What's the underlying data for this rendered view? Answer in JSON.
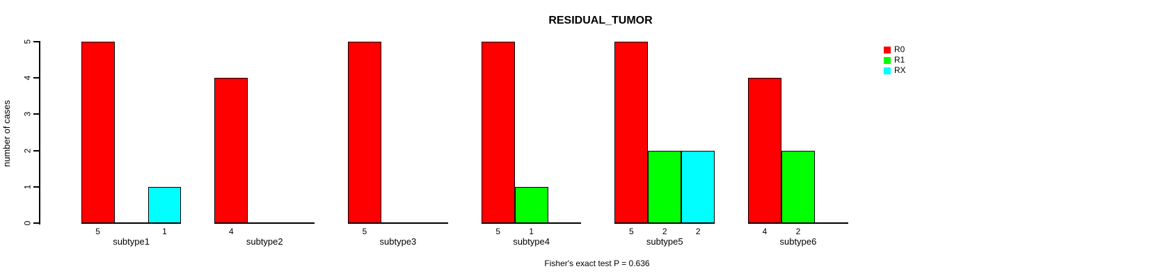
{
  "chart_data": {
    "type": "bar",
    "title": "RESIDUAL_TUMOR",
    "xlabel": "",
    "ylabel": "number of cases",
    "ylim": [
      0,
      5
    ],
    "yticks": [
      0,
      1,
      2,
      3,
      4,
      5
    ],
    "grid": false,
    "legend_position": "right",
    "categories": [
      "subtype1",
      "subtype2",
      "subtype3",
      "subtype4",
      "subtype5",
      "subtype6"
    ],
    "series": [
      {
        "name": "R0",
        "color": "#ff0000",
        "values": [
          5,
          4,
          5,
          5,
          5,
          4
        ]
      },
      {
        "name": "R1",
        "color": "#00ff00",
        "values": [
          0,
          0,
          0,
          1,
          2,
          2
        ]
      },
      {
        "name": "RX",
        "color": "#00ffff",
        "values": [
          1,
          0,
          0,
          0,
          2,
          0
        ]
      }
    ],
    "bar_value_labels": "values shown under each nonzero bar",
    "annotation": "Fisher's exact test P = 0.636",
    "colors": {
      "axis": "#000000",
      "background": "#ffffff"
    }
  }
}
